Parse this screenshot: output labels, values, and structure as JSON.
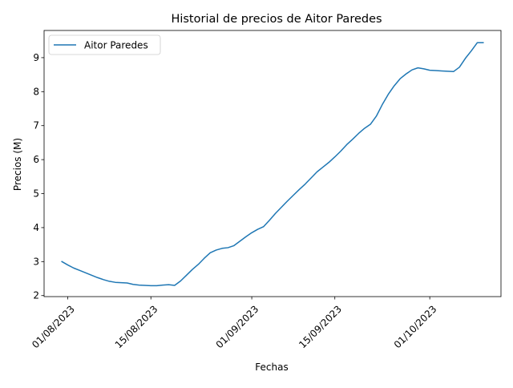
{
  "chart_data": {
    "type": "line",
    "title": "Historial de precios de Aitor Paredes",
    "xlabel": "Fechas",
    "ylabel": "Precios (M)",
    "x_tick_labels": [
      "01/08/2023",
      "15/08/2023",
      "01/09/2023",
      "15/09/2023",
      "01/10/2023"
    ],
    "x_ticks": [
      "2023-08-01",
      "2023-08-15",
      "2023-09-01",
      "2023-09-15",
      "2023-10-01"
    ],
    "y_ticks": [
      2,
      3,
      4,
      5,
      6,
      7,
      8,
      9
    ],
    "xlim": [
      "2023-07-28",
      "2023-10-13"
    ],
    "ylim": [
      1.97,
      9.8
    ],
    "grid": false,
    "legend_position": "top-left",
    "series": [
      {
        "name": "Aitor Paredes",
        "color": "#1f77b4",
        "x": [
          "2023-07-31",
          "2023-08-01",
          "2023-08-02",
          "2023-08-03",
          "2023-08-04",
          "2023-08-05",
          "2023-08-06",
          "2023-08-07",
          "2023-08-08",
          "2023-08-09",
          "2023-08-10",
          "2023-08-11",
          "2023-08-12",
          "2023-08-13",
          "2023-08-14",
          "2023-08-15",
          "2023-08-16",
          "2023-08-17",
          "2023-08-18",
          "2023-08-19",
          "2023-08-20",
          "2023-08-21",
          "2023-08-22",
          "2023-08-23",
          "2023-08-24",
          "2023-08-25",
          "2023-08-26",
          "2023-08-27",
          "2023-08-28",
          "2023-08-29",
          "2023-08-30",
          "2023-08-31",
          "2023-09-01",
          "2023-09-02",
          "2023-09-03",
          "2023-09-04",
          "2023-09-05",
          "2023-09-06",
          "2023-09-07",
          "2023-09-08",
          "2023-09-09",
          "2023-09-10",
          "2023-09-11",
          "2023-09-12",
          "2023-09-13",
          "2023-09-14",
          "2023-09-15",
          "2023-09-16",
          "2023-09-17",
          "2023-09-18",
          "2023-09-19",
          "2023-09-20",
          "2023-09-21",
          "2023-09-22",
          "2023-09-23",
          "2023-09-24",
          "2023-09-25",
          "2023-09-26",
          "2023-09-27",
          "2023-09-28",
          "2023-09-29",
          "2023-09-30",
          "2023-10-01",
          "2023-10-02",
          "2023-10-03",
          "2023-10-04",
          "2023-10-05",
          "2023-10-06",
          "2023-10-07",
          "2023-10-08",
          "2023-10-09",
          "2023-10-10"
        ],
        "y": [
          3.0,
          2.9,
          2.81,
          2.74,
          2.67,
          2.6,
          2.53,
          2.47,
          2.42,
          2.39,
          2.38,
          2.37,
          2.33,
          2.31,
          2.3,
          2.29,
          2.29,
          2.31,
          2.32,
          2.3,
          2.43,
          2.6,
          2.77,
          2.92,
          3.1,
          3.26,
          3.34,
          3.39,
          3.41,
          3.47,
          3.6,
          3.73,
          3.85,
          3.95,
          4.03,
          4.22,
          4.42,
          4.6,
          4.78,
          4.95,
          5.12,
          5.28,
          5.46,
          5.64,
          5.78,
          5.92,
          6.08,
          6.25,
          6.44,
          6.6,
          6.77,
          6.92,
          7.04,
          7.28,
          7.62,
          7.92,
          8.17,
          8.38,
          8.52,
          8.64,
          8.7,
          8.67,
          8.63,
          8.62,
          8.61,
          8.6,
          8.59,
          8.72,
          8.98,
          9.2,
          9.44,
          9.44
        ]
      }
    ]
  }
}
